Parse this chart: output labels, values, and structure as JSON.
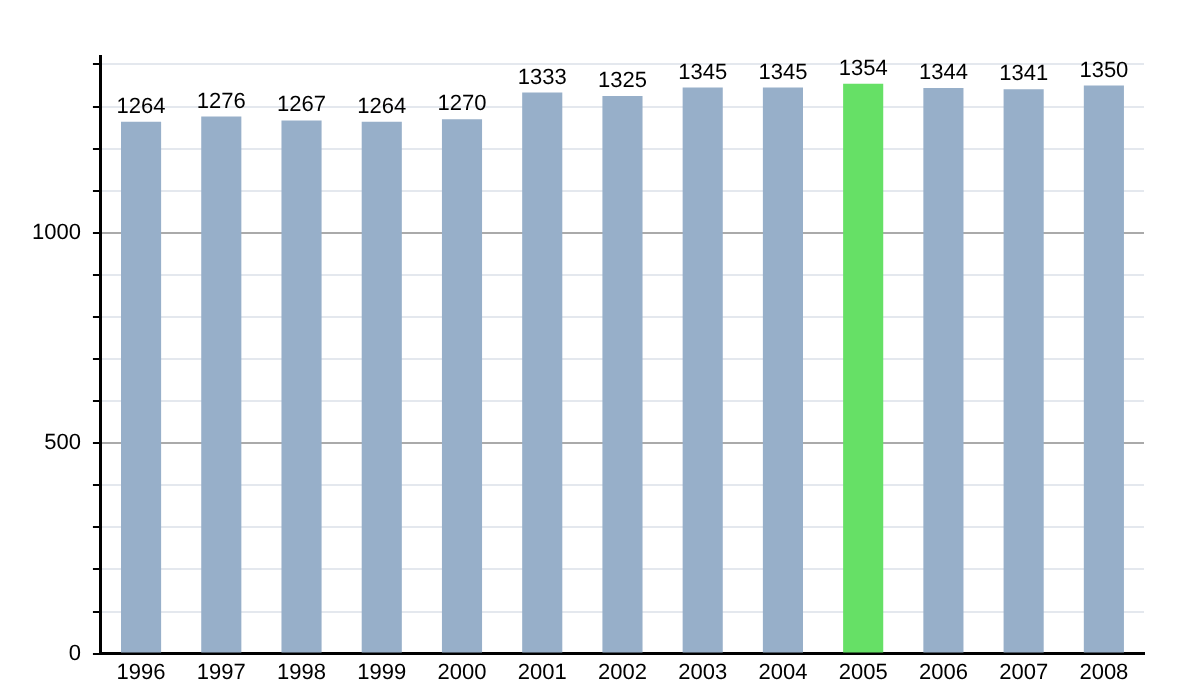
{
  "chart_data": {
    "type": "bar",
    "categories": [
      "1996",
      "1997",
      "1998",
      "1999",
      "2000",
      "2001",
      "2002",
      "2003",
      "2004",
      "2005",
      "2006",
      "2007",
      "2008"
    ],
    "values": [
      1264,
      1276,
      1267,
      1264,
      1270,
      1333,
      1325,
      1345,
      1345,
      1354,
      1344,
      1341,
      1350
    ],
    "colors": [
      "#97afc9",
      "#97afc9",
      "#97afc9",
      "#97afc9",
      "#97afc9",
      "#97afc9",
      "#97afc9",
      "#97afc9",
      "#97afc9",
      "#66e066",
      "#97afc9",
      "#97afc9",
      "#97afc9"
    ],
    "ylim": [
      0,
      1420
    ],
    "yticks": [
      0,
      {
        "value": 100,
        "label": null
      },
      {
        "value": 200,
        "label": null
      },
      {
        "value": 300,
        "label": null
      },
      {
        "value": 400,
        "label": null
      },
      500,
      {
        "value": 600,
        "label": null
      },
      {
        "value": 700,
        "label": null
      },
      {
        "value": 800,
        "label": null
      },
      {
        "value": 900,
        "label": null
      },
      1000,
      {
        "value": 1100,
        "label": null
      },
      {
        "value": 1200,
        "label": null
      },
      {
        "value": 1300,
        "label": null
      },
      {
        "value": 1400,
        "label": null
      }
    ],
    "grid": "y",
    "data_labels": true
  }
}
